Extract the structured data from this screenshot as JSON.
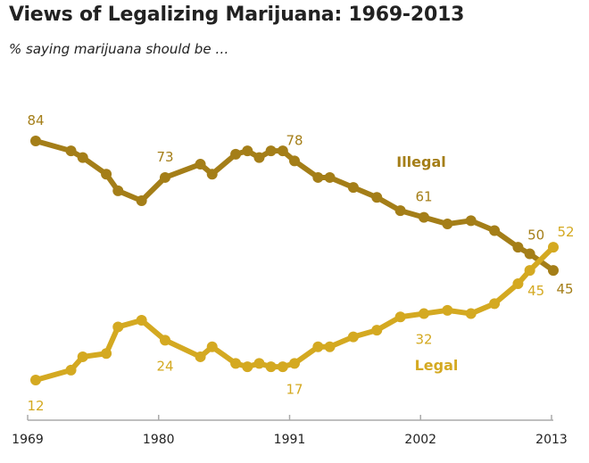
{
  "title": "Views of Legalizing Marijuana: 1969-2013",
  "subtitle": "% saying marijuana should be …",
  "chart_data": {
    "type": "line",
    "title": "Views of Legalizing Marijuana: 1969-2013",
    "subtitle": "% saying marijuana should be …",
    "xlabel": "",
    "ylabel": "",
    "x_ticks": [
      "1969",
      "1980",
      "1991",
      "2002",
      "2013"
    ],
    "xlim": [
      1969,
      2013
    ],
    "ylim": [
      12,
      84
    ],
    "grid": false,
    "legend": "inline labels",
    "x": [
      1969,
      1972,
      1973,
      1975,
      1976,
      1978,
      1980,
      1983,
      1984,
      1986,
      1987,
      1988,
      1989,
      1990,
      1991,
      1993,
      1994,
      1996,
      1998,
      2000,
      2002,
      2004,
      2006,
      2008,
      2010,
      2011,
      2013
    ],
    "series": [
      {
        "name": "Illegal",
        "color": "#a47e18",
        "values": [
          84,
          81,
          79,
          74,
          69,
          66,
          73,
          77,
          74,
          80,
          81,
          79,
          81,
          81,
          78,
          73,
          73,
          70,
          67,
          63,
          61,
          59,
          60,
          57,
          52,
          50,
          45
        ]
      },
      {
        "name": "Legal",
        "color": "#d4a921",
        "values": [
          12,
          15,
          19,
          20,
          28,
          30,
          24,
          19,
          22,
          17,
          16,
          17,
          16,
          16,
          17,
          22,
          22,
          25,
          27,
          31,
          32,
          33,
          32,
          35,
          41,
          45,
          52
        ]
      }
    ],
    "data_labels": [
      {
        "series": 0,
        "year": 1969,
        "text": "84"
      },
      {
        "series": 0,
        "year": 1980,
        "text": "73"
      },
      {
        "series": 0,
        "year": 1991,
        "text": "78"
      },
      {
        "series": 0,
        "year": 2002,
        "text": "61"
      },
      {
        "series": 0,
        "year": 2011,
        "text": "50"
      },
      {
        "series": 0,
        "year": 2013,
        "text": "45"
      },
      {
        "series": 1,
        "year": 1969,
        "text": "12"
      },
      {
        "series": 1,
        "year": 1980,
        "text": "24"
      },
      {
        "series": 1,
        "year": 1991,
        "text": "17"
      },
      {
        "series": 1,
        "year": 2002,
        "text": "32"
      },
      {
        "series": 1,
        "year": 2011,
        "text": "45"
      },
      {
        "series": 1,
        "year": 2013,
        "text": "52"
      }
    ]
  }
}
